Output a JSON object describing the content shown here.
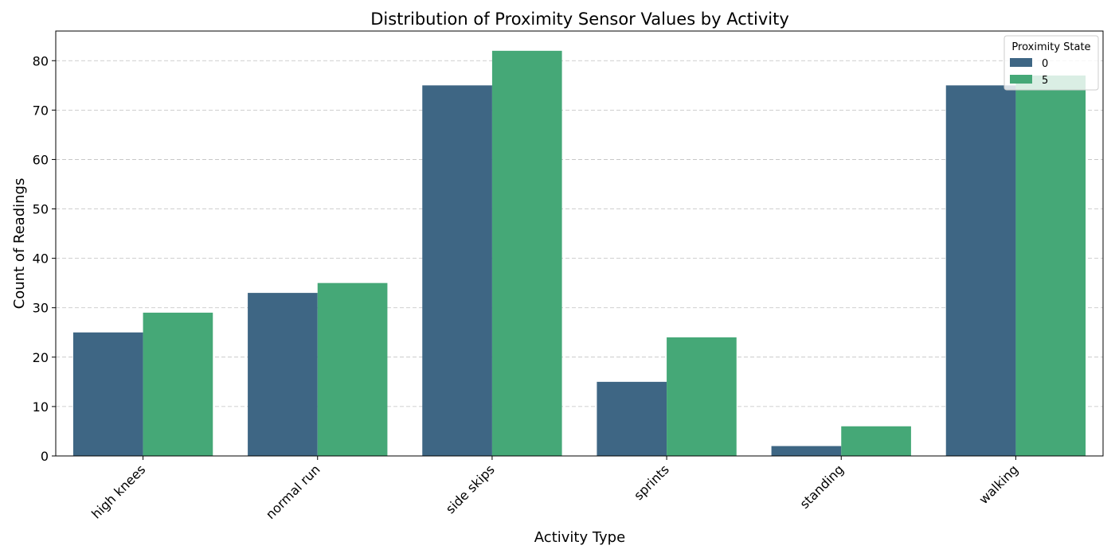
{
  "chart_data": {
    "type": "bar",
    "title": "Distribution of Proximity Sensor Values by Activity",
    "xlabel": "Activity Type",
    "ylabel": "Count of Readings",
    "categories": [
      "high knees",
      "normal run",
      "side skips",
      "sprints",
      "standing",
      "walking"
    ],
    "series": [
      {
        "name": "0",
        "values": [
          25,
          33,
          75,
          15,
          2,
          75
        ],
        "color": "#3e6684"
      },
      {
        "name": "5",
        "values": [
          29,
          35,
          82,
          24,
          6,
          77
        ],
        "color": "#45a877"
      }
    ],
    "ylim": [
      0,
      86
    ],
    "yticks": [
      0,
      10,
      20,
      30,
      40,
      50,
      60,
      70,
      80
    ],
    "grid": true,
    "legend": {
      "title": "Proximity State",
      "placement": "top-right"
    }
  }
}
